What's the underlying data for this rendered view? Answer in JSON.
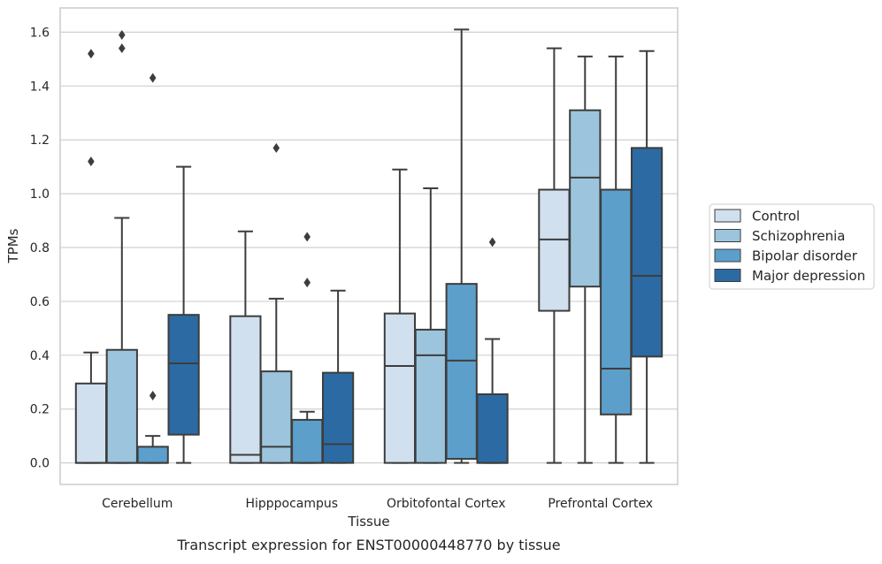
{
  "chart_data": {
    "type": "box",
    "caption": "Transcript expression for ENST00000448770 by tissue",
    "xlabel": "Tissue",
    "ylabel": "TPMs",
    "ylim": [
      -0.08,
      1.69
    ],
    "yticks": [
      0.0,
      0.2,
      0.4,
      0.6,
      0.8,
      1.0,
      1.2,
      1.4,
      1.6
    ],
    "ytick_labels": [
      "0.0",
      "0.2",
      "0.4",
      "0.6",
      "0.8",
      "1.0",
      "1.2",
      "1.4",
      "1.6"
    ],
    "grid": "horizontal",
    "legend_position": "right",
    "categories": [
      "Cerebellum",
      "Hipppocampus",
      "Orbitofontal Cortex",
      "Prefrontal Cortex"
    ],
    "series": [
      {
        "name": "Control",
        "color": "#d0e0ef",
        "boxes": [
          {
            "min": 0.0,
            "q1": 0.0,
            "median": 0.0,
            "q3": 0.295,
            "max": 0.41,
            "outliers": [
              1.12,
              1.52
            ]
          },
          {
            "min": 0.0,
            "q1": 0.0,
            "median": 0.03,
            "q3": 0.545,
            "max": 0.86,
            "outliers": []
          },
          {
            "min": 0.0,
            "q1": 0.0,
            "median": 0.36,
            "q3": 0.555,
            "max": 1.09,
            "outliers": []
          },
          {
            "min": 0.0,
            "q1": 0.565,
            "median": 0.83,
            "q3": 1.015,
            "max": 1.54,
            "outliers": []
          }
        ]
      },
      {
        "name": "Schizophrenia",
        "color": "#9cc5dd",
        "boxes": [
          {
            "min": 0.0,
            "q1": 0.0,
            "median": 0.0,
            "q3": 0.42,
            "max": 0.91,
            "outliers": [
              1.54,
              1.59
            ]
          },
          {
            "min": 0.0,
            "q1": 0.0,
            "median": 0.06,
            "q3": 0.34,
            "max": 0.61,
            "outliers": [
              1.17
            ]
          },
          {
            "min": 0.0,
            "q1": 0.0,
            "median": 0.4,
            "q3": 0.495,
            "max": 1.02,
            "outliers": []
          },
          {
            "min": 0.0,
            "q1": 0.655,
            "median": 1.06,
            "q3": 1.31,
            "max": 1.51,
            "outliers": []
          }
        ]
      },
      {
        "name": "Bipolar disorder",
        "color": "#5c9fcb",
        "boxes": [
          {
            "min": 0.0,
            "q1": 0.0,
            "median": 0.0,
            "q3": 0.06,
            "max": 0.1,
            "outliers": [
              0.25,
              1.43
            ]
          },
          {
            "min": 0.0,
            "q1": 0.0,
            "median": 0.0,
            "q3": 0.16,
            "max": 0.19,
            "outliers": [
              0.67,
              0.84
            ]
          },
          {
            "min": 0.0,
            "q1": 0.015,
            "median": 0.38,
            "q3": 0.665,
            "max": 1.61,
            "outliers": []
          },
          {
            "min": 0.0,
            "q1": 0.18,
            "median": 0.35,
            "q3": 1.015,
            "max": 1.51,
            "outliers": []
          }
        ]
      },
      {
        "name": "Major depression",
        "color": "#2c6aa3",
        "boxes": [
          {
            "min": 0.0,
            "q1": 0.105,
            "median": 0.37,
            "q3": 0.55,
            "max": 1.1,
            "outliers": []
          },
          {
            "min": 0.0,
            "q1": 0.0,
            "median": 0.07,
            "q3": 0.335,
            "max": 0.64,
            "outliers": []
          },
          {
            "min": 0.0,
            "q1": 0.0,
            "median": 0.0,
            "q3": 0.255,
            "max": 0.46,
            "outliers": [
              0.82
            ]
          },
          {
            "min": 0.0,
            "q1": 0.395,
            "median": 0.695,
            "q3": 1.17,
            "max": 1.53,
            "outliers": []
          }
        ]
      }
    ]
  }
}
